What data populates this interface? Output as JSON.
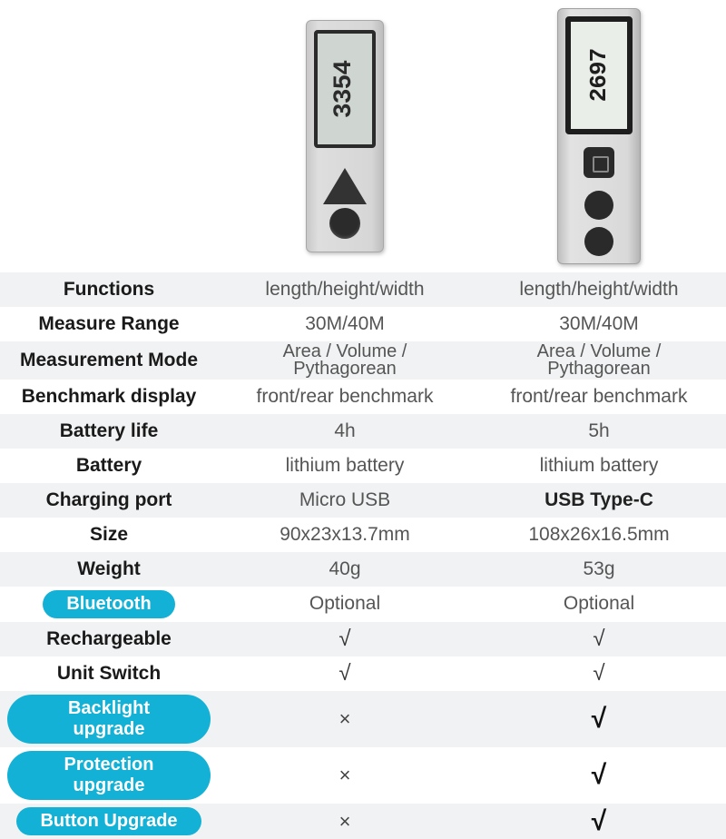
{
  "colors": {
    "pill_bg": "#14b1d6",
    "pill_fg": "#ffffff",
    "row_alt_bg": "#f1f2f3",
    "text_label": "#1a1a1a",
    "text_value": "#555555",
    "check_mark": "#333333",
    "cross_mark": "#444444"
  },
  "devices": {
    "a": {
      "display_digits": "3354"
    },
    "b": {
      "display_digits": "2697"
    }
  },
  "rows": [
    {
      "label": "Functions",
      "a": "length/height/width",
      "b": "length/height/width"
    },
    {
      "label": "Measure Range",
      "a": "30M/40M",
      "b": "30M/40M"
    },
    {
      "label": "Measurement Mode",
      "a_l1": "Area / Volume /",
      "a_l2": "Pythagorean",
      "b_l1": "Area / Volume /",
      "b_l2": "Pythagorean"
    },
    {
      "label": "Benchmark display",
      "a": "front/rear benchmark",
      "b": "front/rear benchmark"
    },
    {
      "label": "Battery life",
      "a": "4h",
      "b": "5h"
    },
    {
      "label": "Battery",
      "a": "lithium battery",
      "b": "lithium battery"
    },
    {
      "label": "Charging port",
      "a": "Micro USB",
      "b": "USB Type-C"
    },
    {
      "label": "Size",
      "a": "90x23x13.7mm",
      "b": "108x26x16.5mm"
    },
    {
      "label": "Weight",
      "a": "40g",
      "b": "53g"
    },
    {
      "label": "Bluetooth",
      "a": "Optional",
      "b": "Optional"
    },
    {
      "label": "Rechargeable",
      "a": "√",
      "b": "√"
    },
    {
      "label": "Unit Switch",
      "a": "√",
      "b": "√"
    },
    {
      "label": "Backlight upgrade",
      "a": "×",
      "b": "√"
    },
    {
      "label": "Protection upgrade",
      "a": "×",
      "b": "√"
    },
    {
      "label": "Button Upgrade",
      "a": "×",
      "b": "√"
    }
  ]
}
